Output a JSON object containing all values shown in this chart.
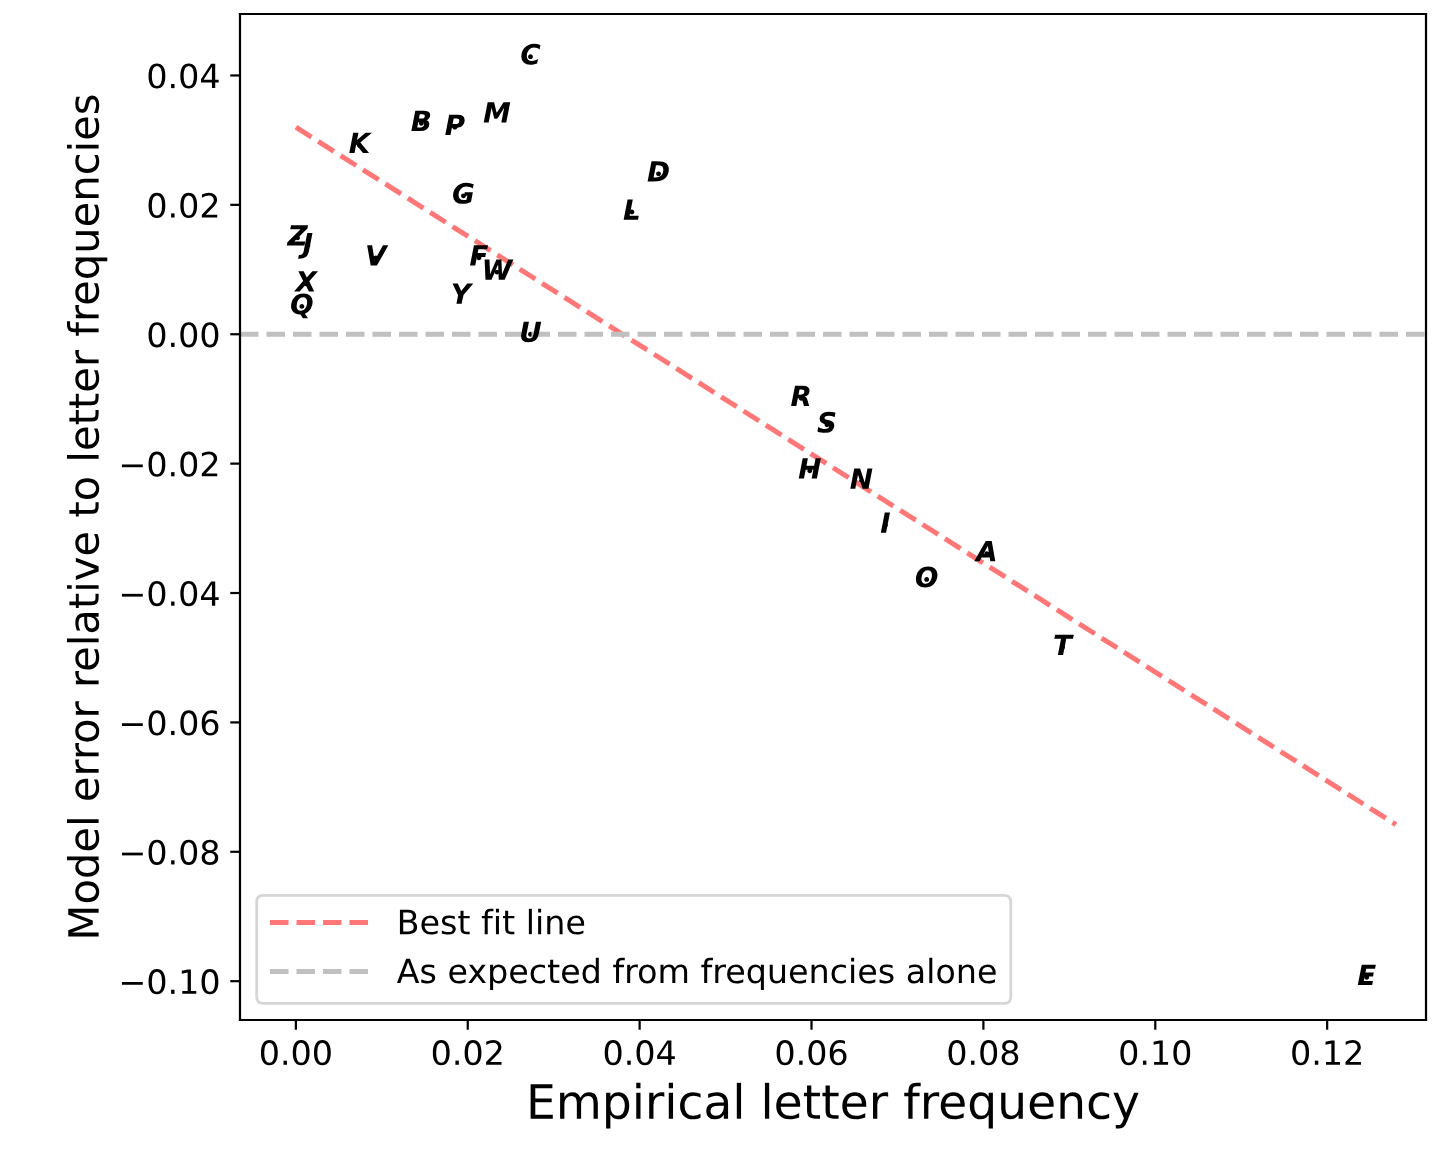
{
  "chart_data": {
    "type": "scatter",
    "xlabel": "Empirical letter frequency",
    "ylabel": "Model error relative to letter frequencies",
    "xlim": [
      -0.0065,
      0.1315
    ],
    "ylim": [
      -0.106,
      0.0495
    ],
    "xticks": [
      {
        "value": 0,
        "label": "0.00"
      },
      {
        "value": 0.02,
        "label": "0.02"
      },
      {
        "value": 0.04,
        "label": "0.04"
      },
      {
        "value": 0.06,
        "label": "0.06"
      },
      {
        "value": 0.08,
        "label": "0.08"
      },
      {
        "value": 0.1,
        "label": "0.10"
      },
      {
        "value": 0.12,
        "label": "0.12"
      }
    ],
    "yticks": [
      {
        "value": -0.1,
        "label": "−0.10"
      },
      {
        "value": -0.08,
        "label": "−0.08"
      },
      {
        "value": -0.06,
        "label": "−0.06"
      },
      {
        "value": -0.04,
        "label": "−0.04"
      },
      {
        "value": -0.02,
        "label": "−0.02"
      },
      {
        "value": 0,
        "label": "0.00"
      },
      {
        "value": 0.02,
        "label": "0.02"
      },
      {
        "value": 0.04,
        "label": "0.04"
      }
    ],
    "grid": false,
    "legend": "bottom left",
    "series": [
      {
        "color": "#000000",
        "x": [
          0.0273,
          0.0146,
          0.0185,
          0.0234,
          0.0074,
          0.0422,
          0.0391,
          0.0195,
          0.0002,
          0.0014,
          0.0093,
          0.0213,
          0.0234,
          0.0012,
          0.0192,
          0.0007,
          0.0273,
          0.0588,
          0.0618,
          0.0598,
          0.0658,
          0.0686,
          0.0804,
          0.0734,
          0.0892,
          0.1246
        ],
        "values": [
          0.0429,
          0.0326,
          0.032,
          0.0339,
          0.0292,
          0.0248,
          0.0189,
          0.0214,
          0.0149,
          0.0137,
          0.0118,
          0.0118,
          0.0096,
          0.0078,
          0.0059,
          0.0043,
          0.0,
          -0.0099,
          -0.014,
          -0.0211,
          -0.0227,
          -0.0295,
          -0.0339,
          -0.0379,
          -0.0484,
          -0.0994
        ],
        "value_labels": [
          "C",
          "B",
          "P",
          "M",
          "K",
          "D",
          "L",
          "G",
          "Z",
          "J",
          "V",
          "F",
          "W",
          "X",
          "Y",
          "Q",
          "U",
          "R",
          "S",
          "H",
          "N",
          "I",
          "A",
          "O",
          "T",
          "E"
        ]
      },
      {
        "type": "line",
        "name": "Best fit line",
        "color": "#ff7777",
        "line_style": "dashed",
        "x": [
          0,
          0.128
        ],
        "values": [
          0.032,
          -0.0758
        ]
      }
    ],
    "ref_lines": [
      {
        "axis": "y",
        "value": 0,
        "label": "As expected from frequencies alone",
        "color": "#c0c0c0",
        "line_style": "dashed"
      }
    ]
  }
}
